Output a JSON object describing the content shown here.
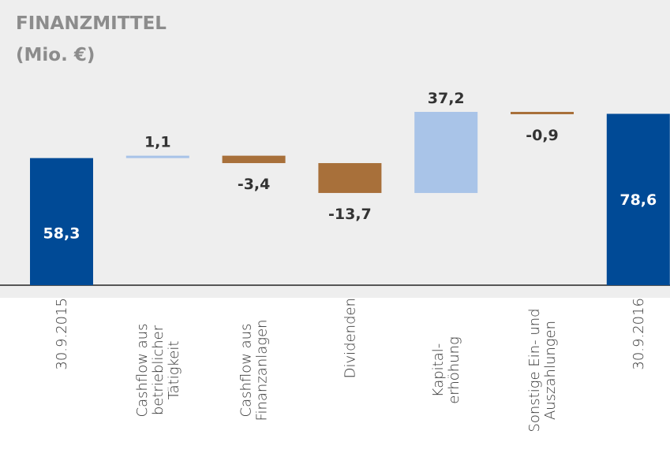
{
  "chart_data": {
    "type": "waterfall",
    "title": [
      "FINANZMITTEL",
      "(Mio. €)"
    ],
    "categories": [
      [
        "30.9.2015"
      ],
      [
        "Cashflow aus",
        "betrieblicher",
        "Tätigkeit"
      ],
      [
        "Cashflow aus",
        "Finanzanlagen"
      ],
      [
        "Dividenden"
      ],
      [
        "Kapital-",
        "erhöhung"
      ],
      [
        "Sonstige Ein- und",
        "Auszahlungen"
      ],
      [
        "30.9.2016"
      ]
    ],
    "measure": [
      "absolute",
      "relative",
      "relative",
      "relative",
      "relative",
      "relative",
      "absolute"
    ],
    "values": [
      58.3,
      1.1,
      -3.4,
      -13.7,
      37.2,
      -0.9,
      78.6
    ],
    "value_labels": [
      "58,3",
      "1,1",
      "-3,4",
      "-13,7",
      "37,2",
      "-0,9",
      "78,6"
    ],
    "colors": {
      "absolute": "#004a96",
      "increase": "#a9c4e8",
      "decrease": "#a8703a"
    }
  }
}
